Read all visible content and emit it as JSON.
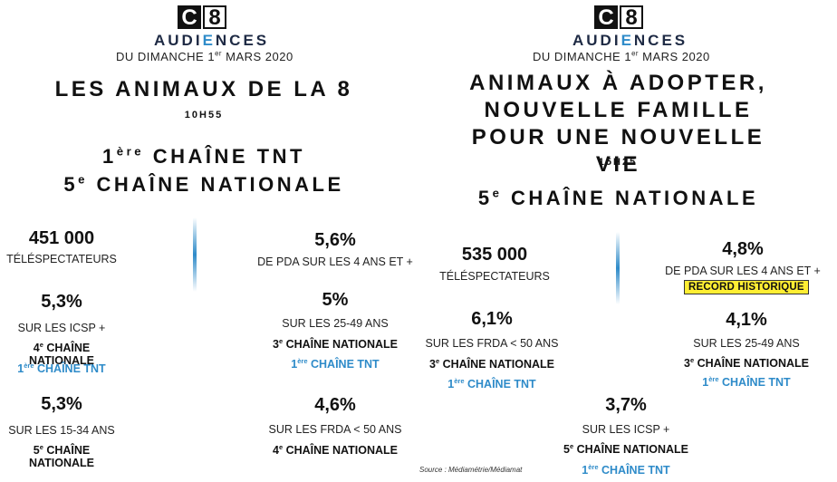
{
  "logo": {
    "c": "C",
    "num": "8"
  },
  "source": "Source : Médiamétrie/Médiamat",
  "left": {
    "audiences_a": "AUDI",
    "audiences_b": "E",
    "audiences_c": "NCES",
    "date_a": "DU DIMANCHE 1",
    "date_sup": "er",
    "date_b": " MARS 2020",
    "program": "LES ANIMAUX DE LA 8",
    "time": "10H55",
    "rank1_a": "1",
    "rank1_sup": "ère",
    "rank1_b": " CHAÎNE TNT",
    "rank2_a": "5",
    "rank2_sup": "e",
    "rank2_b": " CHAÎNE NATIONALE",
    "viewers": "451 000",
    "viewers_label": "TÉLÉSPECTATEURS",
    "pda": "5,6%",
    "pda_label": "DE PDA SUR LES 4 ANS ET +",
    "icsp": "5,3%",
    "icsp_label": "SUR LES ICSP +",
    "icsp_nat_a": "4",
    "icsp_nat_sup": "e",
    "icsp_nat_b": " CHAÎNE NATIONALE",
    "icsp_tnt_a": "1",
    "icsp_tnt_sup": "ère",
    "icsp_tnt_b": " CHAÎNE TNT",
    "a2549": "5%",
    "a2549_label": "SUR LES 25-49 ANS",
    "a2549_nat_a": "3",
    "a2549_nat_sup": "e",
    "a2549_nat_b": " CHAÎNE NATIONALE",
    "a2549_tnt_a": "1",
    "a2549_tnt_sup": "ère",
    "a2549_tnt_b": " CHAÎNE TNT",
    "a1534": "5,3%",
    "a1534_label": "SUR LES 15-34 ANS",
    "a1534_nat_a": "5",
    "a1534_nat_sup": "e",
    "a1534_nat_b": " CHAÎNE NATIONALE",
    "frda": "4,6%",
    "frda_label": "SUR LES FRDA < 50 ANS",
    "frda_nat_a": "4",
    "frda_nat_sup": "e",
    "frda_nat_b": " CHAÎNE NATIONALE"
  },
  "right": {
    "audiences_a": "AUDI",
    "audiences_b": "E",
    "audiences_c": "NCES",
    "date_a": "DU DIMANCHE 1",
    "date_sup": "er",
    "date_b": " MARS 2020",
    "program_l1": "ANIMAUX À ADOPTER,",
    "program_l2": "NOUVELLE FAMILLE",
    "program_l3": "POUR UNE NOUVELLE VIE",
    "time": "15H25",
    "rank_a": "5",
    "rank_sup": "e",
    "rank_b": " CHAÎNE NATIONALE",
    "viewers": "535 000",
    "viewers_label": "TÉLÉSPECTATEURS",
    "pda": "4,8%",
    "pda_label": "DE PDA SUR LES 4 ANS ET +",
    "record": "RECORD HISTORIQUE",
    "frda": "6,1%",
    "frda_label": "SUR LES FRDA < 50 ANS",
    "frda_nat_a": "3",
    "frda_nat_sup": "e",
    "frda_nat_b": " CHAÎNE NATIONALE",
    "frda_tnt_a": "1",
    "frda_tnt_sup": "ère",
    "frda_tnt_b": " CHAÎNE TNT",
    "a2549": "4,1%",
    "a2549_label": "SUR LES 25-49 ANS",
    "a2549_nat_a": "3",
    "a2549_nat_sup": "e",
    "a2549_nat_b": " CHAÎNE NATIONALE",
    "a2549_tnt_a": "1",
    "a2549_tnt_sup": "ère",
    "a2549_tnt_b": " CHAÎNE TNT",
    "icsp": "3,7%",
    "icsp_label": "SUR LES ICSP +",
    "icsp_nat_a": "5",
    "icsp_nat_sup": "e",
    "icsp_nat_b": " CHAÎNE NATIONALE",
    "icsp_tnt_a": "1",
    "icsp_tnt_sup": "ère",
    "icsp_tnt_b": " CHAÎNE TNT"
  }
}
